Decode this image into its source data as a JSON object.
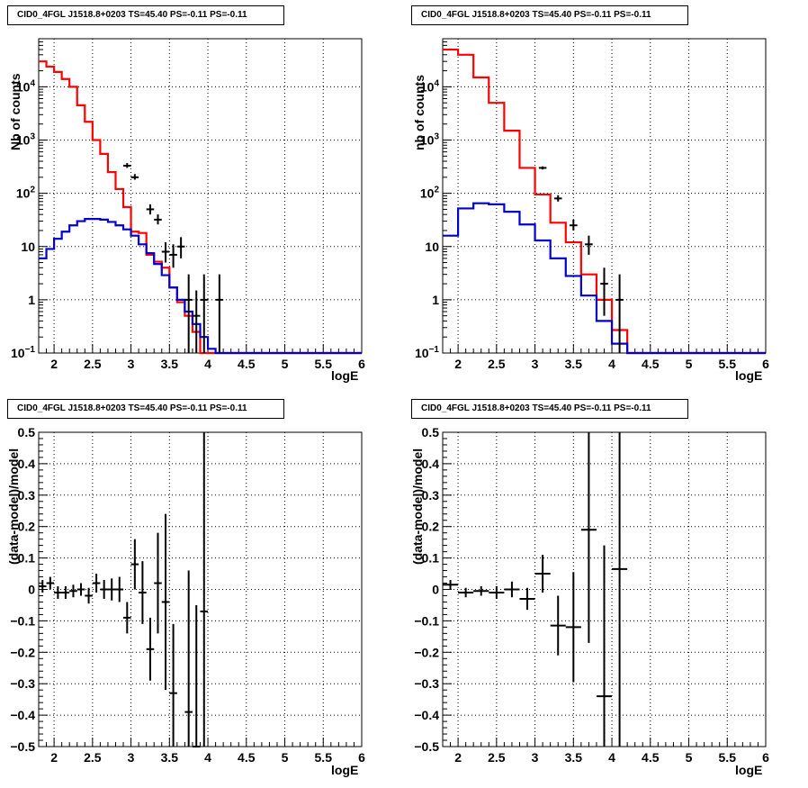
{
  "chart_data": [
    {
      "type": "line",
      "title": "CID0_4FGL J1518.8+0203 TS=45.40 PS=-0.11 PS=-0.11",
      "xlabel": "logE",
      "ylabel": "Nb of counts",
      "xlim": [
        1.8,
        6.0
      ],
      "ylim": [
        0.1,
        80000
      ],
      "ylog": true,
      "grid": true,
      "x_ticks": [
        "2",
        "2.5",
        "3",
        "3.5",
        "4",
        "4.5",
        "5",
        "5.5",
        "6"
      ],
      "y_ticks": [
        "10^{-1}",
        "1",
        "10",
        "10^{2}",
        "10^{3}",
        "10^{4}"
      ],
      "bin_edges": [
        1.8,
        1.9,
        2.0,
        2.1,
        2.2,
        2.3,
        2.4,
        2.5,
        2.6,
        2.7,
        2.8,
        2.9,
        3.0,
        3.1,
        3.2,
        3.3,
        3.4,
        3.5,
        3.6,
        3.7,
        3.8,
        3.9,
        4.0,
        4.1,
        4.2,
        4.3,
        4.4,
        4.5,
        4.6,
        4.7,
        4.8,
        4.9,
        5.0,
        5.1,
        5.2,
        5.3,
        5.4,
        5.5,
        5.6,
        5.7,
        5.8,
        5.9,
        6.0
      ],
      "series": [
        {
          "kind": "hist",
          "color": "#ff0000",
          "values": [
            30000,
            24000,
            19000,
            14000,
            10000,
            4500,
            2200,
            1000,
            550,
            250,
            120,
            55,
            19,
            18,
            7,
            5.2,
            4,
            1.7,
            0.9,
            0.5,
            0.25,
            0.1,
            0.1,
            0.1,
            0.1,
            0.1,
            0.1,
            0.1,
            0.1,
            0.1,
            0.1,
            0.1,
            0.1,
            0.1,
            0.1,
            0.1,
            0.1,
            0.1,
            0.1,
            0.1,
            0.1,
            0.1
          ]
        },
        {
          "kind": "hist",
          "color": "#0000cc",
          "values": [
            6,
            9,
            14,
            19,
            25,
            30,
            33,
            33,
            32,
            29,
            25,
            21,
            16,
            11,
            7.5,
            4.7,
            2.9,
            1.7,
            1.0,
            0.6,
            0.35,
            0.2,
            0.12,
            0.1,
            0.1,
            0.1,
            0.1,
            0.1,
            0.1,
            0.1,
            0.1,
            0.1,
            0.1,
            0.1,
            0.1,
            0.1,
            0.1,
            0.1,
            0.1,
            0.1,
            0.1,
            0.1
          ]
        },
        {
          "kind": "points",
          "color": "#000000",
          "x": [
            2.95,
            3.05,
            3.25,
            3.35,
            3.45,
            3.55,
            3.65,
            3.75,
            3.85,
            3.95,
            4.15
          ],
          "y": [
            330,
            200,
            50,
            32,
            8,
            7,
            10,
            1,
            0.5,
            1,
            1
          ],
          "ylo": [
            300,
            180,
            40,
            26,
            5,
            4,
            6,
            0.1,
            0.1,
            0.1,
            0.1
          ],
          "yhi": [
            370,
            230,
            62,
            40,
            12,
            11,
            15,
            3,
            1.5,
            3,
            3
          ]
        }
      ]
    },
    {
      "type": "line",
      "title": "CID0_4FGL J1518.8+0203 TS=45.40 PS=-0.11 PS=-0.11",
      "xlabel": "logE",
      "ylabel": "nb of counts",
      "xlim": [
        1.8,
        6.0
      ],
      "ylim": [
        0.1,
        80000
      ],
      "ylog": true,
      "grid": true,
      "x_ticks": [
        "2",
        "2.5",
        "3",
        "3.5",
        "4",
        "4.5",
        "5",
        "5.5",
        "6"
      ],
      "y_ticks": [
        "10^{-1}",
        "1",
        "10",
        "10^{2}",
        "10^{3}",
        "10^{4}"
      ],
      "bin_edges": [
        1.8,
        2.0,
        2.2,
        2.4,
        2.6,
        2.8,
        3.0,
        3.2,
        3.4,
        3.6,
        3.8,
        4.0,
        4.2,
        4.4,
        4.6,
        4.8,
        5.0,
        5.2,
        5.4,
        5.6,
        5.8,
        6.0
      ],
      "series": [
        {
          "kind": "hist",
          "color": "#ff0000",
          "values": [
            50000,
            40000,
            15000,
            5000,
            1500,
            300,
            95,
            28,
            12,
            3,
            1,
            0.27,
            0.1,
            0.1,
            0.1,
            0.1,
            0.1,
            0.1,
            0.1,
            0.1,
            0.1
          ]
        },
        {
          "kind": "hist",
          "color": "#0000cc",
          "values": [
            16,
            52,
            65,
            62,
            45,
            26,
            13,
            6,
            2.8,
            1.2,
            0.4,
            0.15,
            0.1,
            0.1,
            0.1,
            0.1,
            0.1,
            0.1,
            0.1,
            0.1,
            0.1
          ]
        },
        {
          "kind": "points",
          "color": "#000000",
          "x": [
            3.1,
            3.3,
            3.5,
            3.7,
            3.9,
            4.1
          ],
          "y": [
            300,
            80,
            25,
            11,
            2,
            1
          ],
          "ylo": [
            280,
            70,
            20,
            7,
            0.5,
            0.1
          ],
          "yhi": [
            320,
            92,
            32,
            16,
            4,
            3
          ]
        }
      ]
    },
    {
      "type": "scatter",
      "title": "CID0_4FGL J1518.8+0203 TS=45.40 PS=-0.11 PS=-0.11",
      "xlabel": "logE",
      "ylabel": "(data-model)/model",
      "xlim": [
        1.8,
        6.0
      ],
      "ylim": [
        -0.5,
        0.5
      ],
      "grid": true,
      "x_ticks": [
        "2",
        "2.5",
        "3",
        "3.5",
        "4",
        "4.5",
        "5",
        "5.5",
        "6"
      ],
      "y_ticks": [
        "-0.5",
        "-0.4",
        "-0.3",
        "-0.2",
        "-0.1",
        "0",
        "0.1",
        "0.2",
        "0.3",
        "0.4",
        "0.5"
      ],
      "series": [
        {
          "kind": "points",
          "color": "#000000",
          "x_halfwidth": 0.05,
          "x": [
            1.85,
            1.95,
            2.05,
            2.15,
            2.25,
            2.35,
            2.45,
            2.55,
            2.65,
            2.75,
            2.85,
            2.95,
            3.05,
            3.15,
            3.25,
            3.35,
            3.45,
            3.55,
            3.65,
            3.75,
            3.85,
            3.95
          ],
          "y": [
            0.01,
            0.02,
            -0.01,
            -0.01,
            -0.005,
            0.0,
            -0.02,
            0.02,
            0.0,
            0.0,
            0.0,
            -0.09,
            0.08,
            -0.01,
            -0.19,
            0.02,
            -0.04,
            -0.33,
            null,
            -0.39,
            -0.5,
            -0.07
          ],
          "err": [
            0.02,
            0.02,
            0.02,
            0.02,
            0.02,
            0.02,
            0.025,
            0.03,
            0.03,
            0.035,
            0.04,
            0.05,
            0.08,
            0.1,
            0.1,
            0.16,
            0.28,
            0.22,
            null,
            0.45,
            0.45,
            0.6
          ]
        }
      ]
    },
    {
      "type": "scatter",
      "title": "CID0_4FGL J1518.8+0203 TS=45.40 PS=-0.11 PS=-0.11",
      "xlabel": "logE",
      "ylabel": "(data-model)/model",
      "xlim": [
        1.8,
        6.0
      ],
      "ylim": [
        -0.5,
        0.5
      ],
      "grid": true,
      "x_ticks": [
        "2",
        "2.5",
        "3",
        "3.5",
        "4",
        "4.5",
        "5",
        "5.5",
        "6"
      ],
      "y_ticks": [
        "-0.5",
        "-0.4",
        "-0.3",
        "-0.2",
        "-0.1",
        "0",
        "0.1",
        "0.2",
        "0.3",
        "0.4",
        "0.5"
      ],
      "series": [
        {
          "kind": "points",
          "color": "#000000",
          "x_halfwidth": 0.1,
          "x": [
            1.9,
            2.1,
            2.3,
            2.5,
            2.7,
            2.9,
            3.1,
            3.3,
            3.5,
            3.7,
            3.9,
            4.1
          ],
          "y": [
            0.015,
            -0.01,
            -0.005,
            -0.01,
            0.0,
            -0.03,
            0.05,
            -0.115,
            -0.12,
            0.19,
            -0.34,
            0.065
          ],
          "err": [
            0.015,
            0.015,
            0.015,
            0.02,
            0.025,
            0.035,
            0.06,
            0.095,
            0.175,
            0.36,
            0.48,
            0.6
          ]
        }
      ]
    }
  ]
}
